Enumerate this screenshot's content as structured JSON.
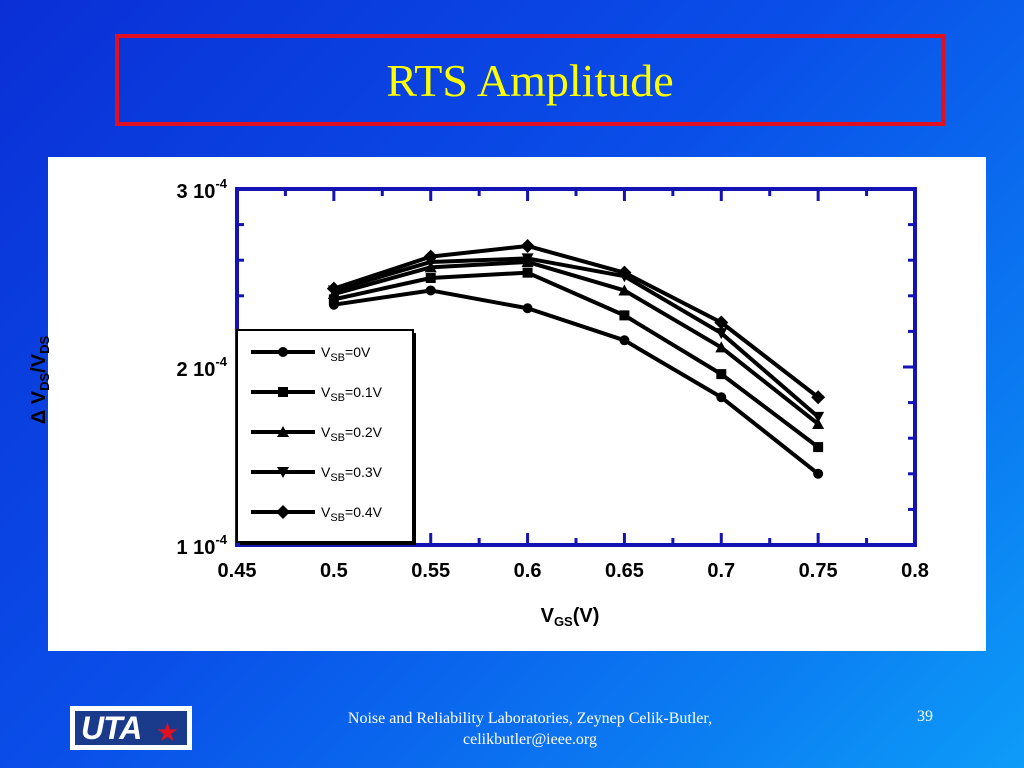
{
  "slide": {
    "title": "RTS Amplitude",
    "footer_line1": "Noise and Reliability Laboratories, Zeynep Celik-Butler,",
    "footer_line2": "celikbutler@ieee.org",
    "page_number": "39",
    "logo_text": "UTA",
    "logo_star": "★",
    "colors": {
      "title": "#ffff00",
      "title_border": "#e01020",
      "axis": "#1414b4",
      "series": "#000000"
    }
  },
  "chart_data": {
    "type": "line",
    "title": "",
    "xlabel": {
      "main": "V",
      "sub": "GS",
      "rest": "(V)"
    },
    "ylabel": {
      "prefix": "Δ V",
      "sub1": "DS",
      "mid": "/V",
      "sub2": "DS"
    },
    "xlim": [
      0.45,
      0.8
    ],
    "ylim": [
      0.0001,
      0.0003
    ],
    "x_ticks": [
      0.45,
      0.5,
      0.55,
      0.6,
      0.65,
      0.7,
      0.75,
      0.8
    ],
    "x_tick_labels": [
      "0.45",
      "0.5",
      "0.55",
      "0.6",
      "0.65",
      "0.7",
      "0.75",
      "0.8"
    ],
    "y_ticks": [
      {
        "value": 0.0003,
        "mantissa": "3 10",
        "exp": "-4"
      },
      {
        "value": 0.0002,
        "mantissa": "2 10",
        "exp": "-4"
      },
      {
        "value": 0.0001,
        "mantissa": "1 10",
        "exp": "-4"
      }
    ],
    "legend_position": "left",
    "grid": false,
    "x": [
      0.5,
      0.55,
      0.6,
      0.65,
      0.7,
      0.75
    ],
    "series": [
      {
        "name_main": "V",
        "name_sub": "SB",
        "name_rest": "=0V",
        "marker": "circle",
        "values": [
          0.000235,
          0.000243,
          0.000233,
          0.000215,
          0.000183,
          0.00014
        ]
      },
      {
        "name_main": "V",
        "name_sub": "SB",
        "name_rest": "=0.1V",
        "marker": "square",
        "values": [
          0.000238,
          0.00025,
          0.000253,
          0.000229,
          0.000196,
          0.000155
        ]
      },
      {
        "name_main": "V",
        "name_sub": "SB",
        "name_rest": "=0.2V",
        "marker": "triangle",
        "values": [
          0.000241,
          0.000256,
          0.000259,
          0.000243,
          0.000211,
          0.000168
        ]
      },
      {
        "name_main": "V",
        "name_sub": "SB",
        "name_rest": "=0.3V",
        "marker": "tri-down",
        "values": [
          0.000243,
          0.000259,
          0.000261,
          0.000251,
          0.000219,
          0.000172
        ]
      },
      {
        "name_main": "V",
        "name_sub": "SB",
        "name_rest": "=0.4V",
        "marker": "diamond",
        "values": [
          0.000244,
          0.000262,
          0.000268,
          0.000253,
          0.000225,
          0.000183
        ]
      }
    ]
  }
}
